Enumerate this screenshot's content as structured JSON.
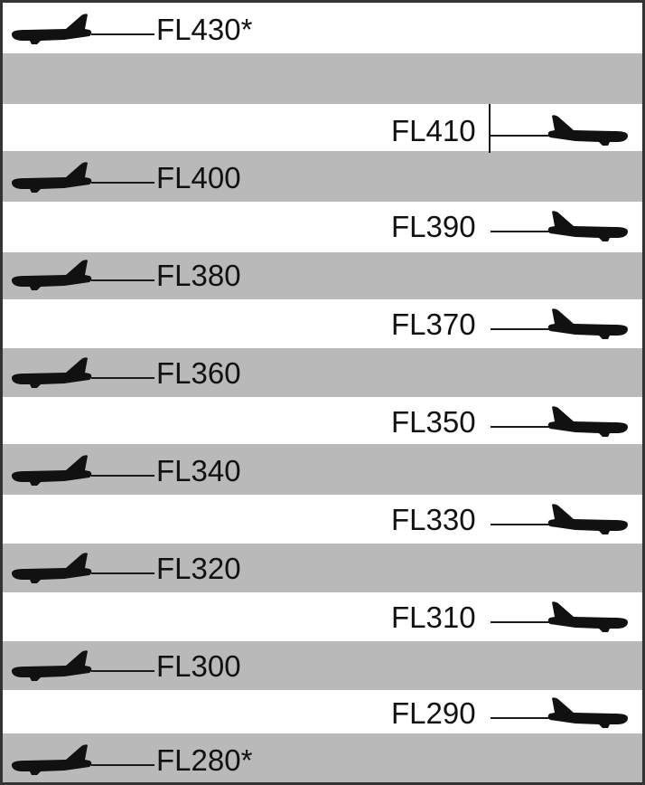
{
  "levels": [
    {
      "label": "FL430*",
      "side": "left",
      "band": "white"
    },
    {
      "label": "",
      "side": "none",
      "band": "shaded"
    },
    {
      "label": "FL410",
      "side": "right",
      "band": "white"
    },
    {
      "label": "FL400",
      "side": "left",
      "band": "shaded"
    },
    {
      "label": "FL390",
      "side": "right",
      "band": "white"
    },
    {
      "label": "FL380",
      "side": "left",
      "band": "shaded"
    },
    {
      "label": "FL370",
      "side": "right",
      "band": "white"
    },
    {
      "label": "FL360",
      "side": "left",
      "band": "shaded"
    },
    {
      "label": "FL350",
      "side": "right",
      "band": "white"
    },
    {
      "label": "FL340",
      "side": "left",
      "band": "shaded"
    },
    {
      "label": "FL330",
      "side": "right",
      "band": "white"
    },
    {
      "label": "FL320",
      "side": "left",
      "band": "shaded"
    },
    {
      "label": "FL310",
      "side": "right",
      "band": "white"
    },
    {
      "label": "FL300",
      "side": "left",
      "band": "shaded"
    },
    {
      "label": "FL290",
      "side": "right",
      "band": "white"
    },
    {
      "label": "FL280*",
      "side": "left",
      "band": "shaded"
    }
  ],
  "colors": {
    "band_shaded": "#b9b9b9",
    "band_white": "#ffffff",
    "aircraft": "#111111",
    "border": "#333333"
  },
  "icons": {
    "aircraft": "airplane-silhouette-icon"
  }
}
